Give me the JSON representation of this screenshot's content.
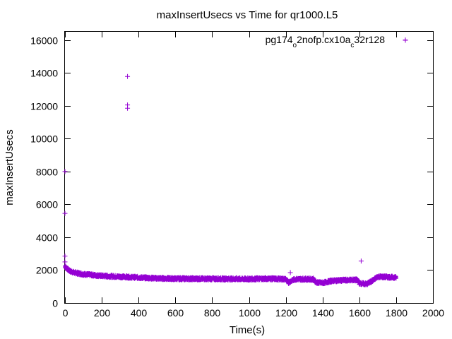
{
  "chart_data": {
    "type": "scatter",
    "title": "maxInsertUsecs vs Time for qr1000.L5",
    "xlabel": "Time(s)",
    "ylabel": "maxInsertUsecs",
    "xlim": [
      0,
      2000
    ],
    "ylim": [
      0,
      16500
    ],
    "xticks": [
      0,
      200,
      400,
      600,
      800,
      1000,
      1200,
      1400,
      1600,
      1800,
      2000
    ],
    "yticks": [
      0,
      2000,
      4000,
      6000,
      8000,
      10000,
      12000,
      14000,
      16000
    ],
    "grid": false,
    "legend_position": "top-right",
    "marker": "plus",
    "series": [
      {
        "name": "pg174_o2nofp.cx10a_c32r128",
        "name_parts": [
          {
            "t": "pg174",
            "sub": false
          },
          {
            "t": "o",
            "sub": true
          },
          {
            "t": "2nofp.cx10a",
            "sub": false
          },
          {
            "t": "c",
            "sub": true
          },
          {
            "t": "32r128",
            "sub": false
          }
        ],
        "color": "#9400d3",
        "outliers": [
          [
            0,
            8000
          ],
          [
            0,
            5450
          ],
          [
            0,
            2850
          ],
          [
            0,
            2500
          ],
          [
            340,
            13780
          ],
          [
            340,
            12050
          ],
          [
            340,
            11850
          ],
          [
            1225,
            1850
          ],
          [
            1610,
            2550
          ],
          [
            1850,
            16000
          ]
        ],
        "trend": [
          [
            0,
            2250
          ],
          [
            10,
            2100
          ],
          [
            25,
            1950
          ],
          [
            50,
            1850
          ],
          [
            100,
            1750
          ],
          [
            200,
            1650
          ],
          [
            300,
            1600
          ],
          [
            400,
            1550
          ],
          [
            500,
            1500
          ],
          [
            600,
            1480
          ],
          [
            800,
            1470
          ],
          [
            1000,
            1460
          ],
          [
            1100,
            1480
          ],
          [
            1200,
            1450
          ],
          [
            1215,
            1250
          ],
          [
            1230,
            1350
          ],
          [
            1250,
            1450
          ],
          [
            1350,
            1450
          ],
          [
            1365,
            1250
          ],
          [
            1400,
            1220
          ],
          [
            1450,
            1350
          ],
          [
            1550,
            1400
          ],
          [
            1590,
            1400
          ],
          [
            1600,
            1200
          ],
          [
            1640,
            1150
          ],
          [
            1670,
            1350
          ],
          [
            1700,
            1600
          ],
          [
            1750,
            1580
          ],
          [
            1800,
            1550
          ]
        ]
      }
    ]
  }
}
